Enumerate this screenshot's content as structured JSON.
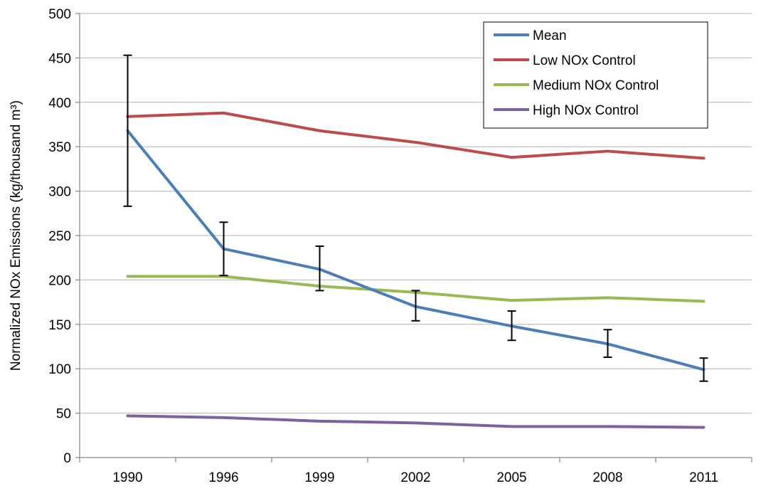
{
  "chart_data": {
    "type": "line",
    "title": "",
    "xlabel": "",
    "ylabel": "Normalized NOx Emissions (kg/thousand m³)",
    "x": [
      "1990",
      "1996",
      "1999",
      "2002",
      "2005",
      "2008",
      "2011"
    ],
    "y_ticks": [
      "0",
      "50",
      "100",
      "150",
      "200",
      "250",
      "300",
      "350",
      "400",
      "450",
      "500"
    ],
    "ylim": [
      0,
      500
    ],
    "grid": true,
    "legend_position": "top-right",
    "series": [
      {
        "name": "Mean",
        "color": "#4a7ebb",
        "values": [
          368,
          235,
          212,
          170,
          148,
          128,
          99
        ],
        "error_low": [
          283,
          205,
          188,
          154,
          132,
          113,
          86
        ],
        "error_high": [
          453,
          265,
          238,
          188,
          165,
          144,
          112
        ]
      },
      {
        "name": "Low NOx Control",
        "color": "#be4b48",
        "values": [
          384,
          388,
          368,
          355,
          338,
          345,
          337
        ]
      },
      {
        "name": "Medium NOx Control",
        "color": "#98b954",
        "values": [
          204,
          204,
          193,
          186,
          177,
          180,
          176
        ]
      },
      {
        "name": "High NOx Control",
        "color": "#7d60a0",
        "values": [
          47,
          45,
          41,
          39,
          35,
          35,
          34
        ]
      }
    ]
  }
}
